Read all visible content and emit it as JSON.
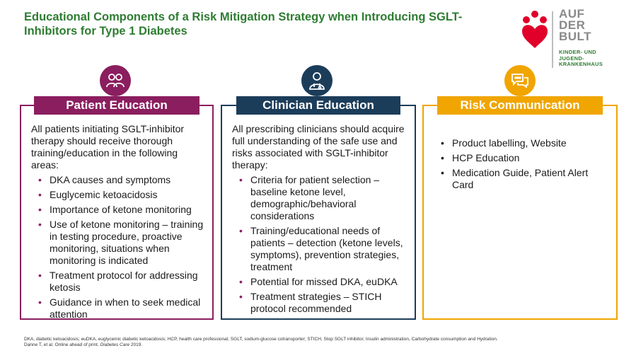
{
  "title": "Educational Components of a Risk Mitigation Strategy when Introducing SGLT-Inhibitors for Type 1 Diabetes",
  "logo": {
    "word_line1": "AUF",
    "word_line2": "DER",
    "word_line3": "BULT",
    "sub_line1": "KINDER- UND",
    "sub_line2": "JUGEND-",
    "sub_line3": "KRANKENHAUS"
  },
  "colors": {
    "patient": "#8b1e5f",
    "clinician": "#1c3d5a",
    "risk": "#f0a500",
    "title": "#2e7d32"
  },
  "patient": {
    "icon": "people-icon",
    "header": "Patient Education",
    "intro": "All patients initiating SGLT-inhibitor therapy should receive thorough training/education in the following areas:",
    "items": [
      "DKA causes and symptoms",
      "Euglycemic ketoacidosis",
      "Importance of ketone monitoring",
      "Use of ketone monitoring – training in testing procedure, proactive monitoring, situations when monitoring is indicated",
      "Treatment protocol for addressing ketosis",
      "Guidance in when to seek medical attention"
    ]
  },
  "clinician": {
    "icon": "doctor-icon",
    "header": "Clinician Education",
    "intro": "All prescribing clinicians should acquire full understanding of the safe use and risks associated with SGLT-inhibitor therapy:",
    "items": [
      "Criteria for patient selection – baseline ketone level, demographic/behavioral considerations",
      "Training/educational needs of patients – detection (ketone levels, symptoms), prevention strategies, treatment",
      "Potential for missed DKA, euDKA",
      "Treatment strategies – STICH protocol recommended"
    ]
  },
  "risk": {
    "icon": "chat-bubbles-icon",
    "header": "Risk Communication",
    "items": [
      "Product labelling, Website",
      "HCP Education",
      "Medication Guide, Patient Alert Card"
    ]
  },
  "footnote": {
    "abbreviations": "DKA, diabetic ketoacidosis; euDKA, euglycemic diabetic ketoacidosis; HCP, health care professional; SGLT, sodium-glucose cotransporter; STICH, Stop SGLT inhibitor, Insulin administration, Carbohydrate consumption and Hydration.",
    "citation_prefix": "Danne T, et al. Online ahead of print. ",
    "citation_journal": "Diabetes Care",
    "citation_year": " 2019."
  }
}
